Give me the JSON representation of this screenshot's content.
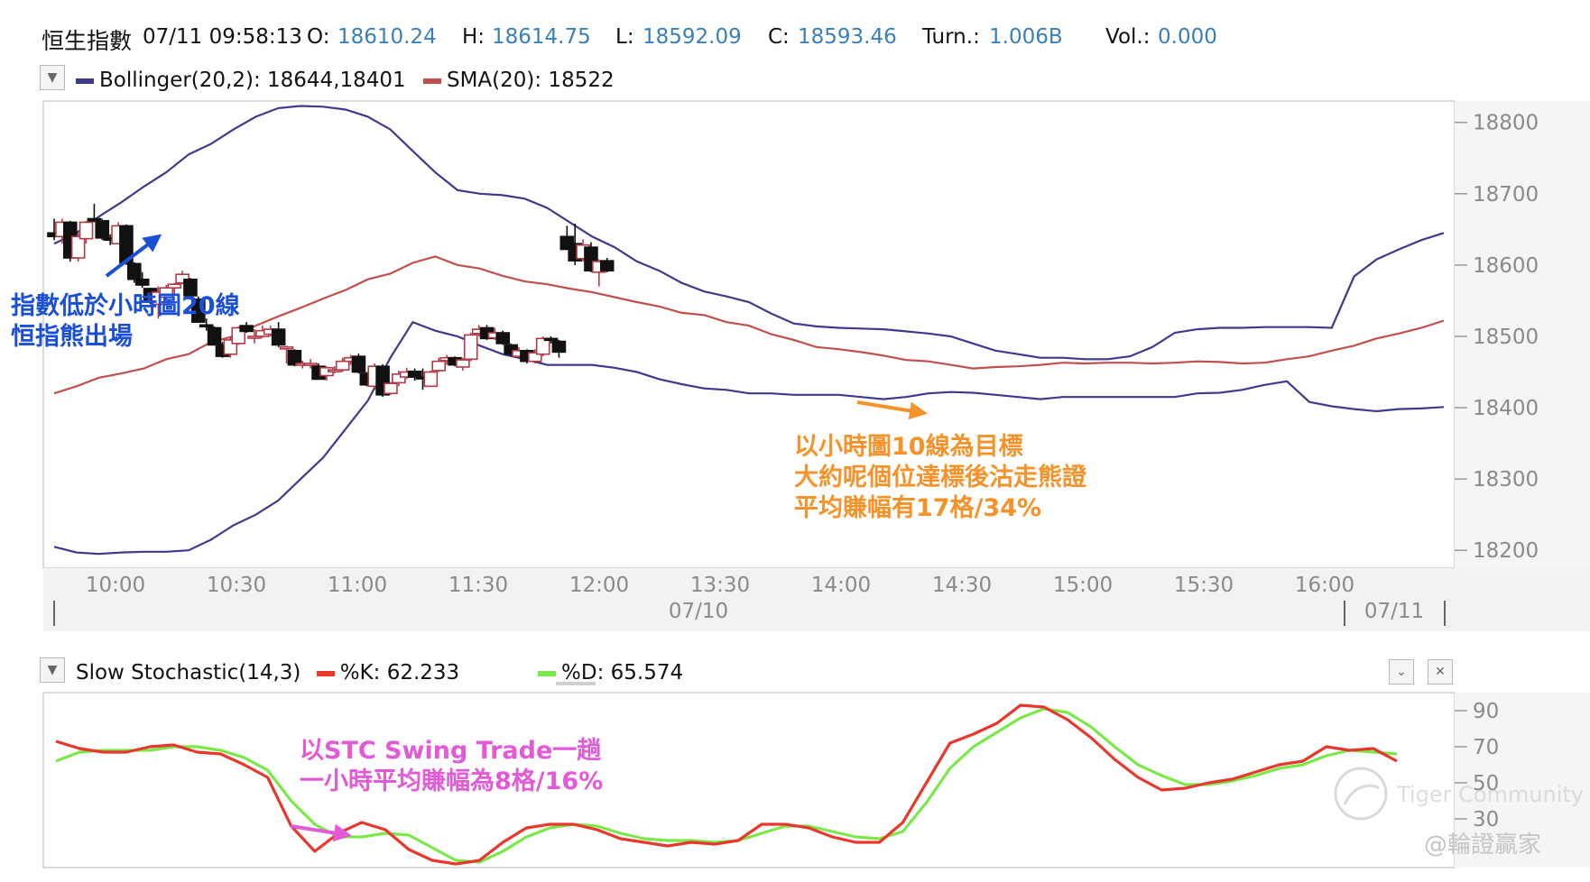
{
  "header": {
    "name": "恒生指數",
    "datetime": "07/11 09:58:13",
    "open_label": "O:",
    "open": "18610.24",
    "high_label": "H:",
    "high": "18614.75",
    "low_label": "L:",
    "low": "18592.09",
    "close_label": "C:",
    "close": "18593.46",
    "turn_label": "Turn.:",
    "turn": "1.006B",
    "vol_label": "Vol.:",
    "vol": "0.000"
  },
  "colors": {
    "up_candle": "#b23a48",
    "down_candle": "#111111",
    "bollinger": "#3f3a8c",
    "sma": "#c0504d",
    "k_line": "#e8372c",
    "d_line": "#7be84a",
    "annotation_blue": "#1a4fd6",
    "annotation_orange": "#f5922a",
    "annotation_magenta": "#e25ad6"
  },
  "chart_data": [
    {
      "type": "candlestick",
      "legend": {
        "bollinger": "Bollinger(20,2): 18644,18401",
        "sma": "SMA(20): 18522"
      },
      "ylim": [
        18175,
        18830
      ],
      "y_ticks": [
        "18800",
        "18700",
        "18600",
        "18500",
        "18400",
        "18300",
        "18200"
      ],
      "x_ticks": [
        "10:00",
        "10:30",
        "11:00",
        "11:30",
        "12:00",
        "13:30",
        "14:00",
        "14:30",
        "15:00",
        "15:30",
        "16:00"
      ],
      "date_labels": [
        "07/10",
        "07/11"
      ],
      "candles": [
        {
          "x": 0.0,
          "o": 18645,
          "h": 18665,
          "l": 18635,
          "c": 18640
        },
        {
          "x": 0.4,
          "o": 18640,
          "h": 18665,
          "l": 18630,
          "c": 18660
        },
        {
          "x": 0.8,
          "o": 18660,
          "h": 18662,
          "l": 18605,
          "c": 18610
        },
        {
          "x": 1.2,
          "o": 18610,
          "h": 18645,
          "l": 18605,
          "c": 18640
        },
        {
          "x": 1.6,
          "o": 18637,
          "h": 18662,
          "l": 18630,
          "c": 18660
        },
        {
          "x": 2.0,
          "o": 18665,
          "h": 18686,
          "l": 18660,
          "c": 18662
        },
        {
          "x": 2.4,
          "o": 18662,
          "h": 18665,
          "l": 18635,
          "c": 18638
        },
        {
          "x": 2.8,
          "o": 18638,
          "h": 18643,
          "l": 18628,
          "c": 18635
        },
        {
          "x": 3.2,
          "o": 18630,
          "h": 18660,
          "l": 18630,
          "c": 18655
        },
        {
          "x": 3.6,
          "o": 18655,
          "h": 18657,
          "l": 18600,
          "c": 18603
        },
        {
          "x": 4.0,
          "o": 18602,
          "h": 18604,
          "l": 18575,
          "c": 18580
        },
        {
          "x": 4.4,
          "o": 18580,
          "h": 18590,
          "l": 18568,
          "c": 18572
        },
        {
          "x": 4.8,
          "o": 18567,
          "h": 18568,
          "l": 18545,
          "c": 18548
        },
        {
          "x": 5.2,
          "o": 18545,
          "h": 18570,
          "l": 18525,
          "c": 18562
        },
        {
          "x": 5.6,
          "o": 18555,
          "h": 18572,
          "l": 18550,
          "c": 18568
        },
        {
          "x": 6.0,
          "o": 18568,
          "h": 18575,
          "l": 18560,
          "c": 18573
        },
        {
          "x": 6.4,
          "o": 18575,
          "h": 18592,
          "l": 18573,
          "c": 18587
        },
        {
          "x": 6.8,
          "o": 18580,
          "h": 18582,
          "l": 18555,
          "c": 18557
        },
        {
          "x": 7.2,
          "o": 18552,
          "h": 18556,
          "l": 18520,
          "c": 18520
        },
        {
          "x": 7.6,
          "o": 18516,
          "h": 18525,
          "l": 18508,
          "c": 18515
        },
        {
          "x": 8.0,
          "o": 18512,
          "h": 18514,
          "l": 18490,
          "c": 18488
        },
        {
          "x": 8.4,
          "o": 18488,
          "h": 18492,
          "l": 18470,
          "c": 18472
        },
        {
          "x": 8.8,
          "o": 18475,
          "h": 18500,
          "l": 18470,
          "c": 18495
        },
        {
          "x": 9.2,
          "o": 18490,
          "h": 18514,
          "l": 18488,
          "c": 18512
        },
        {
          "x": 9.6,
          "o": 18515,
          "h": 18520,
          "l": 18505,
          "c": 18507
        },
        {
          "x": 10.0,
          "o": 18500,
          "h": 18510,
          "l": 18490,
          "c": 18500
        },
        {
          "x": 10.4,
          "o": 18500,
          "h": 18515,
          "l": 18498,
          "c": 18508
        },
        {
          "x": 10.8,
          "o": 18503,
          "h": 18515,
          "l": 18500,
          "c": 18510
        },
        {
          "x": 11.2,
          "o": 18510,
          "h": 18520,
          "l": 18485,
          "c": 18488
        },
        {
          "x": 11.6,
          "o": 18485,
          "h": 18487,
          "l": 18462,
          "c": 18485
        },
        {
          "x": 12.0,
          "o": 18480,
          "h": 18482,
          "l": 18458,
          "c": 18460
        },
        {
          "x": 12.4,
          "o": 18460,
          "h": 18466,
          "l": 18455,
          "c": 18462
        },
        {
          "x": 12.8,
          "o": 18460,
          "h": 18468,
          "l": 18455,
          "c": 18462
        },
        {
          "x": 13.2,
          "o": 18458,
          "h": 18462,
          "l": 18440,
          "c": 18440
        },
        {
          "x": 13.6,
          "o": 18445,
          "h": 18458,
          "l": 18438,
          "c": 18456
        },
        {
          "x": 14.0,
          "o": 18453,
          "h": 18458,
          "l": 18448,
          "c": 18453
        },
        {
          "x": 14.4,
          "o": 18453,
          "h": 18470,
          "l": 18450,
          "c": 18465
        },
        {
          "x": 14.8,
          "o": 18465,
          "h": 18474,
          "l": 18460,
          "c": 18470
        },
        {
          "x": 15.2,
          "o": 18472,
          "h": 18476,
          "l": 18448,
          "c": 18450
        },
        {
          "x": 15.6,
          "o": 18448,
          "h": 18450,
          "l": 18430,
          "c": 18432
        },
        {
          "x": 16.0,
          "o": 18430,
          "h": 18462,
          "l": 18425,
          "c": 18458
        },
        {
          "x": 16.4,
          "o": 18458,
          "h": 18461,
          "l": 18415,
          "c": 18418
        },
        {
          "x": 16.8,
          "o": 18420,
          "h": 18436,
          "l": 18418,
          "c": 18434
        },
        {
          "x": 17.2,
          "o": 18435,
          "h": 18452,
          "l": 18430,
          "c": 18447
        },
        {
          "x": 17.6,
          "o": 18443,
          "h": 18456,
          "l": 18440,
          "c": 18450
        },
        {
          "x": 18.0,
          "o": 18451,
          "h": 18455,
          "l": 18438,
          "c": 18443
        },
        {
          "x": 18.4,
          "o": 18443,
          "h": 18455,
          "l": 18425,
          "c": 18441
        },
        {
          "x": 18.8,
          "o": 18430,
          "h": 18452,
          "l": 18430,
          "c": 18450
        },
        {
          "x": 19.2,
          "o": 18452,
          "h": 18470,
          "l": 18450,
          "c": 18465
        },
        {
          "x": 19.6,
          "o": 18466,
          "h": 18474,
          "l": 18460,
          "c": 18470
        },
        {
          "x": 20.0,
          "o": 18470,
          "h": 18472,
          "l": 18458,
          "c": 18460
        },
        {
          "x": 20.4,
          "o": 18457,
          "h": 18470,
          "l": 18452,
          "c": 18467
        },
        {
          "x": 20.8,
          "o": 18468,
          "h": 18505,
          "l": 18465,
          "c": 18502
        },
        {
          "x": 21.2,
          "o": 18504,
          "h": 18516,
          "l": 18500,
          "c": 18510
        },
        {
          "x": 21.6,
          "o": 18512,
          "h": 18516,
          "l": 18495,
          "c": 18497
        },
        {
          "x": 22.0,
          "o": 18498,
          "h": 18512,
          "l": 18495,
          "c": 18505
        },
        {
          "x": 22.4,
          "o": 18505,
          "h": 18508,
          "l": 18488,
          "c": 18490
        },
        {
          "x": 22.8,
          "o": 18488,
          "h": 18490,
          "l": 18472,
          "c": 18475
        },
        {
          "x": 23.2,
          "o": 18472,
          "h": 18485,
          "l": 18470,
          "c": 18480
        },
        {
          "x": 23.6,
          "o": 18480,
          "h": 18482,
          "l": 18462,
          "c": 18465
        },
        {
          "x": 24.0,
          "o": 18465,
          "h": 18482,
          "l": 18462,
          "c": 18477
        },
        {
          "x": 24.4,
          "o": 18475,
          "h": 18500,
          "l": 18472,
          "c": 18497
        },
        {
          "x": 24.8,
          "o": 18497,
          "h": 18500,
          "l": 18490,
          "c": 18495
        },
        {
          "x": 25.2,
          "o": 18493,
          "h": 18495,
          "l": 18470,
          "c": 18478
        },
        {
          "x": 25.6,
          "o": 18640,
          "h": 18655,
          "l": 18622,
          "c": 18622
        },
        {
          "x": 26.0,
          "o": 18630,
          "h": 18658,
          "l": 18600,
          "c": 18606
        },
        {
          "x": 26.4,
          "o": 18609,
          "h": 18636,
          "l": 18605,
          "c": 18628
        },
        {
          "x": 26.8,
          "o": 18625,
          "h": 18632,
          "l": 18590,
          "c": 18592
        },
        {
          "x": 27.2,
          "o": 18590,
          "h": 18608,
          "l": 18570,
          "c": 18605
        },
        {
          "x": 27.6,
          "o": 18606,
          "h": 18610,
          "l": 18590,
          "c": 18592
        }
      ],
      "bollinger_upper": [
        18630,
        18645,
        18668,
        18688,
        18710,
        18730,
        18755,
        18770,
        18790,
        18808,
        18820,
        18823,
        18822,
        18818,
        18808,
        18790,
        18760,
        18730,
        18705,
        18700,
        18698,
        18693,
        18680,
        18660,
        18640,
        18625,
        18605,
        18592,
        18575,
        18563,
        18556,
        18548,
        18532,
        18518,
        18514,
        18512,
        18511,
        18510,
        18507,
        18504,
        18500,
        18490,
        18480,
        18475,
        18470,
        18470,
        18468,
        18468,
        18472,
        18485,
        18505,
        18510,
        18512,
        18512,
        18513,
        18513,
        18513,
        18512,
        18584,
        18608,
        18622,
        18635,
        18645
      ],
      "sma": [
        18420,
        18430,
        18442,
        18448,
        18455,
        18468,
        18475,
        18492,
        18500,
        18515,
        18528,
        18540,
        18553,
        18565,
        18580,
        18588,
        18603,
        18612,
        18600,
        18595,
        18585,
        18577,
        18573,
        18567,
        18562,
        18555,
        18548,
        18542,
        18533,
        18530,
        18520,
        18515,
        18503,
        18495,
        18485,
        18482,
        18478,
        18473,
        18467,
        18465,
        18460,
        18455,
        18457,
        18458,
        18460,
        18463,
        18462,
        18463,
        18463,
        18462,
        18463,
        18465,
        18464,
        18462,
        18463,
        18468,
        18472,
        18480,
        18487,
        18497,
        18504,
        18512,
        18522
      ],
      "bollinger_lower": [
        18205,
        18197,
        18195,
        18197,
        18198,
        18198,
        18200,
        18215,
        18235,
        18250,
        18270,
        18300,
        18330,
        18370,
        18410,
        18470,
        18520,
        18508,
        18500,
        18487,
        18475,
        18468,
        18460,
        18460,
        18460,
        18456,
        18450,
        18440,
        18433,
        18427,
        18425,
        18420,
        18420,
        18418,
        18418,
        18418,
        18415,
        18412,
        18415,
        18420,
        18422,
        18421,
        18418,
        18415,
        18412,
        18415,
        18415,
        18415,
        18415,
        18415,
        18415,
        18420,
        18421,
        18425,
        18432,
        18437,
        18408,
        18402,
        18398,
        18395,
        18398,
        18399,
        18401
      ]
    },
    {
      "type": "line",
      "legend": {
        "name": "Slow Stochastic(14,3)",
        "k": "%K: 62.233",
        "d": "%D: 65.574"
      },
      "ylim": [
        3,
        100
      ],
      "y_ticks": [
        "90",
        "70",
        "50",
        "30"
      ],
      "series": [
        {
          "name": "%K",
          "values": [
            73,
            69,
            67,
            67,
            70,
            71,
            67,
            66,
            60,
            53,
            26,
            12,
            22,
            28,
            24,
            13,
            7,
            5,
            7,
            17,
            25,
            27,
            27,
            24,
            19,
            17,
            15,
            17,
            16,
            18,
            27,
            27,
            25,
            20,
            17,
            17,
            28,
            50,
            72,
            77,
            83,
            93,
            92,
            85,
            75,
            63,
            53,
            46,
            47,
            50,
            52,
            56,
            60,
            62,
            70,
            68,
            69,
            62
          ]
        },
        {
          "name": "%D",
          "values": [
            62,
            67,
            68,
            68,
            68,
            70,
            70,
            68,
            64,
            57,
            40,
            27,
            20,
            20,
            22,
            21,
            14,
            7,
            6,
            12,
            20,
            25,
            27,
            26,
            22,
            19,
            18,
            18,
            17,
            18,
            22,
            26,
            26,
            23,
            20,
            19,
            23,
            39,
            58,
            70,
            78,
            86,
            91,
            89,
            81,
            70,
            60,
            54,
            49,
            49,
            51,
            54,
            58,
            60,
            65,
            68,
            67,
            66
          ]
        }
      ]
    }
  ],
  "annotations": {
    "blue_1": "指數低於小時圖20線",
    "blue_2": "恒指熊出場",
    "orange_1": "以小時圖10線為目標",
    "orange_2": "大約呢個位達標後沽走熊證",
    "orange_3": "平均賺幅有17格/34%",
    "magenta_1": "以STC Swing Trade一趟",
    "magenta_2": "一小時平均賺幅為8格/16%"
  },
  "watermark": {
    "brand": "Tiger Community",
    "handle": "@輪證贏家"
  },
  "icons": {
    "collapse": "triangle-down-icon",
    "minimize": "chevron-down-icon",
    "close": "close-icon"
  }
}
